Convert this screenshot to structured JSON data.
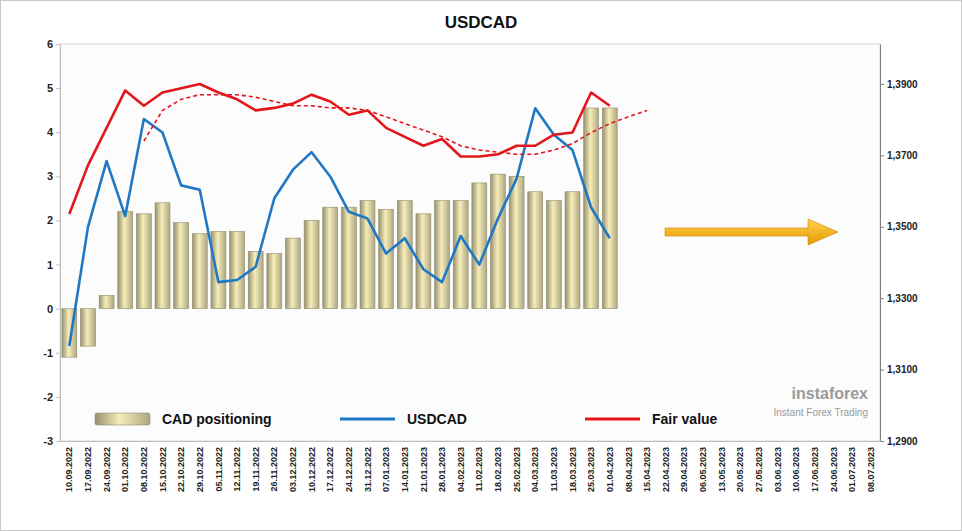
{
  "chart_data": {
    "type": "bar",
    "title": "USDCAD",
    "categories": [
      "10.09.2022",
      "17.09.2022",
      "24.09.2022",
      "01.10.2022",
      "08.10.2022",
      "15.10.2022",
      "22.10.2022",
      "29.10.2022",
      "05.11.2022",
      "12.11.2022",
      "19.11.2022",
      "26.11.2022",
      "03.12.2022",
      "10.12.2022",
      "17.12.2022",
      "24.12.2022",
      "31.12.2022",
      "07.01.2023",
      "14.01.2023",
      "21.01.2023",
      "28.01.2023",
      "04.02.2023",
      "11.02.2023",
      "18.02.2023",
      "25.02.2023",
      "04.03.2023",
      "11.03.2023",
      "18.03.2023",
      "25.03.2023",
      "01.04.2023",
      "08.04.2023",
      "15.04.2023",
      "22.04.2023",
      "29.04.2023",
      "06.05.2023",
      "13.05.2023",
      "20.05.2023",
      "27.05.2023",
      "03.06.2023",
      "10.06.2023",
      "17.06.2023",
      "24.06.2023",
      "01.07.2023",
      "08.07.2023"
    ],
    "series": [
      {
        "name": "CAD positioning",
        "type": "bar",
        "color": "#cfc69b",
        "values": [
          -1.1,
          -0.85,
          0.3,
          2.2,
          2.15,
          2.4,
          1.95,
          1.7,
          1.75,
          1.75,
          1.3,
          1.25,
          1.6,
          2.0,
          2.3,
          2.3,
          2.45,
          2.25,
          2.45,
          2.15,
          2.45,
          2.45,
          2.85,
          3.05,
          3.0,
          2.65,
          2.45,
          2.65,
          4.55,
          4.55,
          null,
          null,
          null,
          null,
          null,
          null,
          null,
          null,
          null,
          null,
          null,
          null,
          null,
          null
        ]
      },
      {
        "name": "USDCAD",
        "type": "line",
        "axis": "y2",
        "color": "#1f78c4",
        "values": [
          1.3166,
          1.3499,
          1.3684,
          1.353,
          1.3802,
          1.3764,
          1.3616,
          1.3604,
          1.3345,
          1.3351,
          1.3388,
          1.358,
          1.366,
          1.3709,
          1.3641,
          1.3542,
          1.3523,
          1.3425,
          1.3468,
          1.3381,
          1.3345,
          1.3474,
          1.3394,
          1.3523,
          1.3635,
          1.3832,
          1.3758,
          1.3715,
          1.3554,
          1.3468,
          null,
          null,
          null,
          null,
          null,
          null,
          null,
          null,
          null,
          null,
          null,
          null,
          null,
          null
        ]
      },
      {
        "name": "Fair value",
        "type": "line",
        "axis": "y2",
        "color": "#e3161b",
        "values": [
          1.3536,
          1.3672,
          1.3777,
          1.3882,
          1.3839,
          1.3876,
          1.3888,
          1.39,
          1.3876,
          1.3857,
          1.3826,
          1.3833,
          1.3845,
          1.387,
          1.3851,
          1.3814,
          1.3826,
          1.3777,
          1.3752,
          1.3727,
          1.3746,
          1.3697,
          1.3697,
          1.3703,
          1.3727,
          1.3727,
          1.3758,
          1.3764,
          1.3876,
          1.3839,
          null,
          null,
          null,
          null,
          null,
          null,
          null,
          null,
          null,
          null,
          null,
          null,
          null,
          null
        ]
      },
      {
        "type": "line",
        "axis": "y2",
        "color": "#e3161b",
        "line_style": "dashed",
        "values": [
          null,
          null,
          null,
          null,
          1.374,
          1.3826,
          1.3857,
          1.387,
          1.387,
          1.387,
          1.3863,
          1.3851,
          1.3839,
          1.3839,
          1.3833,
          1.3833,
          1.3826,
          1.3808,
          1.3789,
          1.3771,
          1.3752,
          1.3727,
          1.3715,
          1.3709,
          1.3703,
          1.3703,
          1.3715,
          1.3733,
          1.3764,
          1.3789,
          1.3808,
          1.3826,
          null,
          null,
          null,
          null,
          null,
          null,
          null,
          null,
          null,
          null,
          null,
          null
        ]
      }
    ],
    "ylim": [
      -3,
      6
    ],
    "yticks": [
      -3,
      -2,
      -1,
      0,
      1,
      2,
      3,
      4,
      5,
      6
    ],
    "y2lim": [
      1.29,
      1.4012
    ],
    "y2ticks": [
      {
        "value": 1.29,
        "label": "1,2900"
      },
      {
        "value": 1.31,
        "label": "1,3100"
      },
      {
        "value": 1.33,
        "label": "1,3300"
      },
      {
        "value": 1.35,
        "label": "1,3500"
      },
      {
        "value": 1.37,
        "label": "1,3700"
      },
      {
        "value": 1.39,
        "label": "1,3900"
      }
    ],
    "grid": false,
    "legend": "lower left",
    "annotations": [
      "instaforex",
      "Instant Forex Trading"
    ]
  }
}
